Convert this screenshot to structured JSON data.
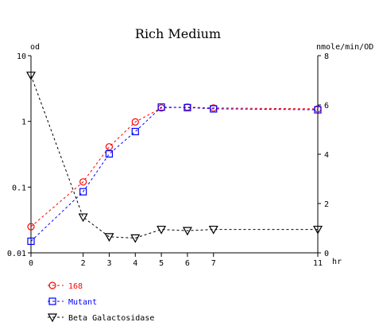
{
  "chart_data": {
    "type": "line",
    "title": "Rich Medium",
    "y_left_label": "od",
    "y_right_label": "nmole/min/OD",
    "x_unit_label": "hr",
    "x_range": [
      0,
      11
    ],
    "x_ticks": [
      0,
      2,
      3,
      4,
      5,
      6,
      7,
      11
    ],
    "y_left_scale": "log",
    "y_left_range": [
      0.01,
      10
    ],
    "y_left_ticks": [
      {
        "value": 0.01,
        "label": "0.01"
      },
      {
        "value": 0.1,
        "label": "0.1"
      },
      {
        "value": 1,
        "label": "1"
      },
      {
        "value": 10,
        "label": "10"
      }
    ],
    "y_right_range": [
      0,
      8
    ],
    "y_right_ticks": [
      {
        "value": 0,
        "label": "0"
      },
      {
        "value": 2,
        "label": "2"
      },
      {
        "value": 4,
        "label": "4"
      },
      {
        "value": 6,
        "label": "6"
      },
      {
        "value": 8,
        "label": "8"
      }
    ],
    "grid": false,
    "legend_placement": "bottom-left",
    "series": [
      {
        "name": "168",
        "axis": "left",
        "marker": "circle",
        "color": "#ff0000",
        "x": [
          0,
          2,
          3,
          4,
          5,
          6,
          7,
          11
        ],
        "values": [
          0.025,
          0.12,
          0.41,
          0.98,
          1.6,
          1.65,
          1.6,
          1.55
        ]
      },
      {
        "name": "Mutant",
        "axis": "left",
        "marker": "square",
        "color": "#0000ff",
        "x": [
          0,
          2,
          3,
          4,
          5,
          6,
          7,
          11
        ],
        "values": [
          0.015,
          0.085,
          0.32,
          0.7,
          1.65,
          1.62,
          1.55,
          1.5
        ]
      },
      {
        "name": "Beta Galactosidase",
        "axis": "right",
        "marker": "triangle-down",
        "color": "#000000",
        "x": [
          0,
          2,
          3,
          4,
          5,
          6,
          7,
          11
        ],
        "values": [
          7.2,
          1.45,
          0.65,
          0.6,
          0.95,
          0.9,
          0.95,
          0.95
        ]
      }
    ]
  }
}
